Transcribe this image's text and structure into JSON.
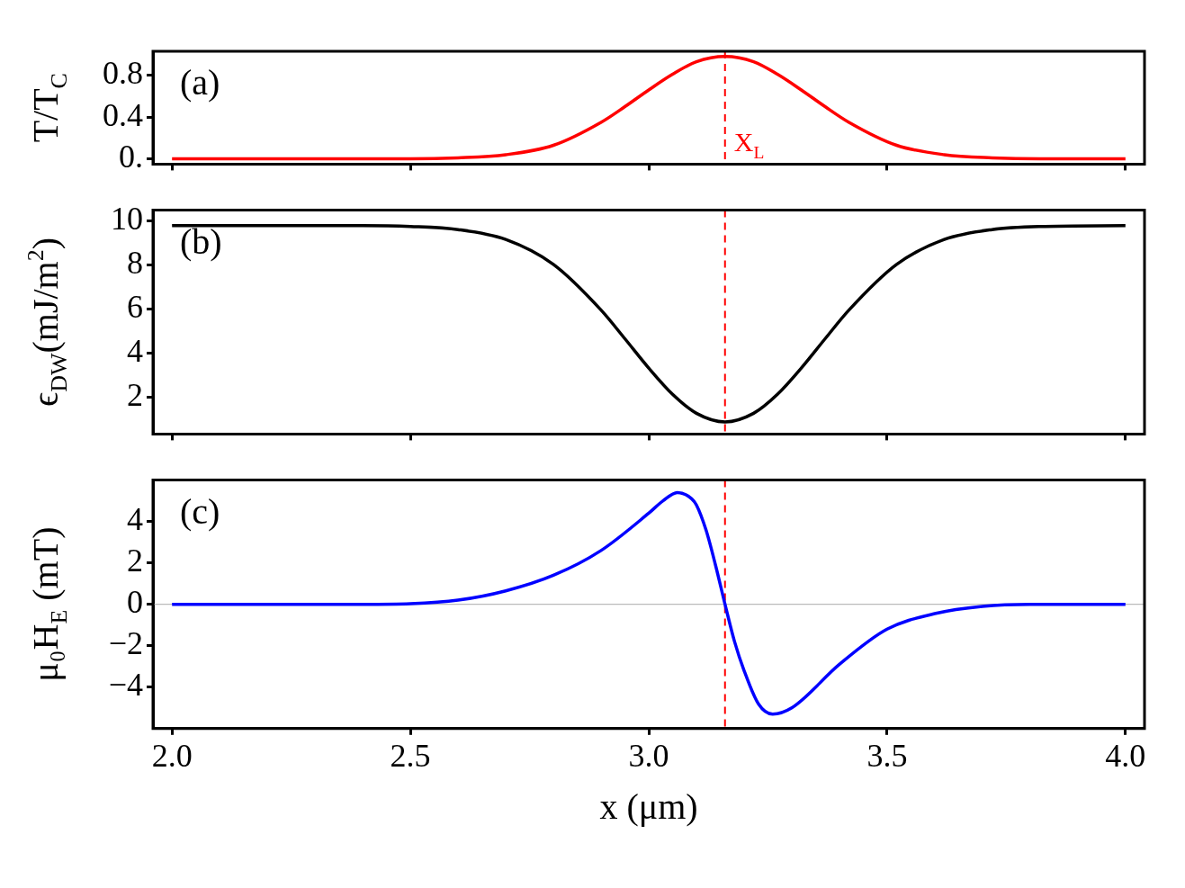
{
  "chart_data": [
    {
      "type": "line",
      "ylabel": "T/T$_{C}$",
      "annotations": [
        "(a)"
      ],
      "xlim": [
        1.96,
        4.04
      ],
      "ylim": [
        -0.05,
        1.03
      ],
      "yticks": [
        {
          "value": 0,
          "label": "0."
        },
        0.4,
        0.8
      ],
      "tick_labels": "y",
      "grid": false,
      "legend": false,
      "marker": "none",
      "line_style": "solid",
      "series": [
        {
          "color": "#ff0000",
          "x": [
            2.0,
            2.4,
            2.5,
            2.6,
            2.7,
            2.8,
            2.9,
            2.95,
            3.0,
            3.05,
            3.1,
            3.16,
            3.22,
            3.27,
            3.32,
            3.37,
            3.42,
            3.52,
            3.62,
            3.72,
            3.82,
            4.0
          ],
          "values": [
            0,
            0,
            0,
            0.01,
            0.04,
            0.13,
            0.35,
            0.5,
            0.66,
            0.81,
            0.93,
            0.98,
            0.93,
            0.81,
            0.66,
            0.5,
            0.35,
            0.13,
            0.04,
            0.01,
            0,
            0
          ]
        }
      ],
      "ref_lines": [
        {
          "axis": "x",
          "value": 3.16,
          "label": "X$_{L}$",
          "color": "#ff0000",
          "line_style": "dashed"
        }
      ]
    },
    {
      "type": "line",
      "ylabel": "ϵ$_{DW}$(mJ/m$^{2}$)",
      "annotations": [
        "(b)"
      ],
      "xlim": [
        1.96,
        4.04
      ],
      "ylim": [
        0.35,
        10.5
      ],
      "yticks": [
        2,
        4,
        6,
        8,
        10
      ],
      "tick_labels": "y",
      "grid": false,
      "legend": false,
      "marker": "none",
      "line_style": "solid",
      "series": [
        {
          "color": "#000000",
          "x": [
            2.0,
            2.4,
            2.5,
            2.6,
            2.7,
            2.8,
            2.9,
            2.95,
            3.0,
            3.05,
            3.1,
            3.16,
            3.22,
            3.27,
            3.32,
            3.37,
            3.42,
            3.52,
            3.62,
            3.72,
            3.82,
            4.0
          ],
          "values": [
            9.8,
            9.8,
            9.76,
            9.62,
            9.17,
            8.04,
            5.97,
            4.67,
            3.34,
            2.15,
            1.29,
            0.9,
            1.29,
            2.15,
            3.34,
            4.67,
            5.97,
            8.04,
            9.17,
            9.62,
            9.76,
            9.8
          ]
        }
      ],
      "ref_lines": [
        {
          "axis": "x",
          "value": 3.16,
          "color": "#ff0000",
          "line_style": "dashed"
        }
      ]
    },
    {
      "type": "line",
      "ylabel": "μ₀H$_{E}$ (mT)",
      "xlabel": "x (μm)",
      "annotations": [
        "(c)"
      ],
      "xlim": [
        1.96,
        4.04
      ],
      "ylim": [
        -6,
        6
      ],
      "yticks": [
        {
          "value": -4,
          "label": "−4"
        },
        {
          "value": -2,
          "label": "−2"
        },
        0,
        2,
        4
      ],
      "xticks": [
        {
          "value": 2,
          "label": "2.0"
        },
        2.5,
        {
          "value": 3,
          "label": "3.0"
        },
        3.5,
        {
          "value": 4,
          "label": "4.0"
        }
      ],
      "grid": false,
      "legend": false,
      "marker": "none",
      "line_style": "solid",
      "series": [
        {
          "color": "#0000ff",
          "x": [
            2.0,
            2.4,
            2.5,
            2.6,
            2.7,
            2.8,
            2.9,
            3.0,
            3.03,
            3.06,
            3.09,
            3.1,
            3.12,
            3.14,
            3.16,
            3.18,
            3.2,
            3.23,
            3.26,
            3.3,
            3.4,
            3.5,
            3.6,
            3.7,
            3.8,
            4.0
          ],
          "values": [
            0,
            0,
            0.03,
            0.2,
            0.65,
            1.4,
            2.6,
            4.4,
            5.0,
            5.4,
            5.1,
            4.8,
            3.6,
            1.9,
            0,
            -1.8,
            -3.2,
            -4.8,
            -5.3,
            -5.0,
            -2.9,
            -1.2,
            -0.45,
            -0.1,
            0,
            0
          ]
        }
      ],
      "ref_lines": [
        {
          "axis": "y",
          "value": 0,
          "color": "#aaaaaa",
          "line_style": "solid"
        },
        {
          "axis": "x",
          "value": 3.16,
          "color": "#ff0000",
          "line_style": "dashed"
        }
      ]
    }
  ]
}
